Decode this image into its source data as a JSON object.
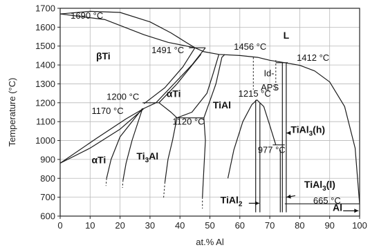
{
  "chart_data": {
    "type": "line",
    "xlabel": "at.% Al",
    "ylabel": "Temperature (°C)",
    "xlim": [
      0,
      100
    ],
    "ylim": [
      600,
      1700
    ],
    "x_ticks": [
      "0",
      "10",
      "20",
      "30",
      "40",
      "50",
      "60",
      "70",
      "80",
      "90",
      "100"
    ],
    "y_ticks": [
      "600",
      "700",
      "800",
      "900",
      "1000",
      "1100",
      "1200",
      "1300",
      "1400",
      "1500",
      "1600",
      "1700"
    ],
    "grid": true,
    "temperature_annotations": [
      {
        "text": "1690 °C",
        "x": 3.5,
        "y": 1645
      },
      {
        "text": "1491 °C",
        "x": 30.5,
        "y": 1462
      },
      {
        "text": "1456 °C",
        "x": 58,
        "y": 1480
      },
      {
        "text": "1412 °C",
        "x": 79,
        "y": 1423
      },
      {
        "text": "1200 °C",
        "x": 15.5,
        "y": 1215
      },
      {
        "text": "1170 °C",
        "x": 10.5,
        "y": 1140
      },
      {
        "text": "1215 °C",
        "x": 59.5,
        "y": 1232
      },
      {
        "text": "1120 °C",
        "x": 37.5,
        "y": 1085
      },
      {
        "text": "977 °C",
        "x": 66,
        "y": 935
      },
      {
        "text": "665 °C",
        "x": 84.5,
        "y": 665
      }
    ],
    "phase_labels": [
      {
        "text": "L",
        "x": 74.5,
        "y": 1540
      },
      {
        "text": "βTi",
        "x": 12,
        "y": 1430
      },
      {
        "text": "αTi",
        "x": 35.5,
        "y": 1230
      },
      {
        "text": "TiAl",
        "x": 51,
        "y": 1170
      },
      {
        "text": "αTi",
        "x": 10.5,
        "y": 880
      },
      {
        "text": "Ti",
        "sub": "3",
        "after": "Al",
        "x": 25.5,
        "y": 900
      },
      {
        "text": "TiAl",
        "sub": "3",
        "after": "(h)",
        "x": 77,
        "y": 1040
      },
      {
        "text": "TiAl",
        "sub": "3",
        "after": "(l)",
        "x": 81.5,
        "y": 750
      },
      {
        "text": "TiAl",
        "sub": "2",
        "after": "",
        "x": 53.5,
        "y": 668
      },
      {
        "text": "Al",
        "x": 91,
        "y": 628
      }
    ],
    "region_labels_plain": [
      {
        "text": "Id-",
        "x": 68,
        "y": 1340
      },
      {
        "text": "APS",
        "x": 67,
        "y": 1265
      }
    ],
    "lines": [
      {
        "id": "liquidus",
        "points": [
          [
            0,
            1670
          ],
          [
            10,
            1684
          ],
          [
            20,
            1678
          ],
          [
            30,
            1628
          ],
          [
            37,
            1570
          ],
          [
            42,
            1520
          ],
          [
            45,
            1491
          ],
          [
            48,
            1470
          ],
          [
            53,
            1456
          ],
          [
            60,
            1450
          ],
          [
            66,
            1440
          ],
          [
            70,
            1425
          ],
          [
            75,
            1412
          ],
          [
            80,
            1398
          ],
          [
            85,
            1368
          ],
          [
            90,
            1310
          ],
          [
            95,
            1180
          ],
          [
            98.5,
            960
          ],
          [
            100,
            662
          ]
        ]
      },
      {
        "id": "solidus-bTi",
        "points": [
          [
            0,
            1670
          ],
          [
            15,
            1640
          ],
          [
            28,
            1560
          ],
          [
            36,
            1520
          ],
          [
            45,
            1491
          ]
        ]
      },
      {
        "id": "peritectic-1491",
        "points": [
          [
            43,
            1491
          ],
          [
            48.5,
            1491
          ]
        ]
      },
      {
        "id": "b-a-upper",
        "points": [
          [
            28,
            1195
          ],
          [
            35,
            1280
          ],
          [
            41,
            1390
          ],
          [
            45,
            1491
          ]
        ]
      },
      {
        "id": "b-a-lower",
        "points": [
          [
            0,
            880
          ],
          [
            10,
            960
          ],
          [
            20,
            1060
          ],
          [
            28,
            1170
          ],
          [
            32,
            1200
          ]
        ]
      },
      {
        "id": "b-solvus-left",
        "points": [
          [
            0,
            880
          ],
          [
            12,
            1010
          ],
          [
            22,
            1115
          ],
          [
            28,
            1170
          ]
        ]
      },
      {
        "id": "eutectoid-1200",
        "points": [
          [
            27.5,
            1200
          ],
          [
            33,
            1200
          ]
        ]
      },
      {
        "id": "a-TiAl-right",
        "points": [
          [
            32,
            1200
          ],
          [
            38,
            1300
          ],
          [
            44,
            1400
          ],
          [
            48.5,
            1491
          ]
        ]
      },
      {
        "id": "a-TiAl-left",
        "points": [
          [
            33,
            1200
          ],
          [
            39,
            1300
          ],
          [
            47,
            1456
          ]
        ]
      },
      {
        "id": "TiAl-left-bound",
        "points": [
          [
            39,
            1120
          ],
          [
            44,
            1150
          ],
          [
            49,
            1250
          ],
          [
            51,
            1350
          ],
          [
            53,
            1456
          ]
        ]
      },
      {
        "id": "eutectoid-1120",
        "points": [
          [
            38.5,
            1120
          ],
          [
            48,
            1120
          ]
        ]
      },
      {
        "id": "a-Ti3Al-down",
        "points": [
          [
            33,
            1200
          ],
          [
            37,
            1150
          ],
          [
            39,
            1120
          ]
        ]
      },
      {
        "id": "Ti3Al-right-lower",
        "points": [
          [
            39,
            1120
          ],
          [
            37.5,
            1000
          ],
          [
            36,
            900
          ],
          [
            35,
            780
          ]
        ]
      },
      {
        "id": "Ti3Al-left",
        "points": [
          [
            27.5,
            1170
          ],
          [
            24,
            1000
          ],
          [
            22,
            880
          ],
          [
            21,
            790
          ]
        ]
      },
      {
        "id": "aTi-solvus",
        "points": [
          [
            27.5,
            1170
          ],
          [
            20,
            1020
          ],
          [
            17,
            900
          ],
          [
            15.5,
            800
          ]
        ]
      },
      {
        "id": "TiAl-right-lower",
        "points": [
          [
            48,
            1120
          ],
          [
            48.5,
            1000
          ],
          [
            48,
            850
          ],
          [
            47.5,
            700
          ]
        ]
      },
      {
        "id": "TiAl-right-upper",
        "points": [
          [
            48,
            1120
          ],
          [
            52,
            1300
          ],
          [
            54,
            1440
          ],
          [
            55,
            1456
          ]
        ]
      },
      {
        "id": "TiAl2-dome",
        "points": [
          [
            56,
            800
          ],
          [
            58,
            950
          ],
          [
            61,
            1100
          ],
          [
            64,
            1190
          ],
          [
            65.7,
            1215
          ],
          [
            68,
            1180
          ],
          [
            70,
            1080
          ],
          [
            72,
            977
          ]
        ]
      },
      {
        "id": "TiAl2-left",
        "points": [
          [
            65.3,
            620
          ],
          [
            65.3,
            1215
          ]
        ]
      },
      {
        "id": "TiAl2-right",
        "points": [
          [
            66.7,
            620
          ],
          [
            66.7,
            1200
          ]
        ]
      },
      {
        "id": "peritectoid-977",
        "points": [
          [
            71,
            977
          ],
          [
            75,
            977
          ]
        ]
      },
      {
        "id": "TiAl3-h-left",
        "points": [
          [
            74.2,
            620
          ],
          [
            74.2,
            1412
          ]
        ]
      },
      {
        "id": "TiAl3-h-right",
        "points": [
          [
            75.5,
            620
          ],
          [
            75.5,
            1412
          ]
        ]
      },
      {
        "id": "TiAl3-l-left",
        "points": [
          [
            73.5,
            620
          ],
          [
            73.5,
            950
          ]
        ]
      },
      {
        "id": "peritectic-1412",
        "points": [
          [
            72,
            1412
          ],
          [
            76,
            1412
          ]
        ]
      },
      {
        "id": "eutectic-665",
        "points": [
          [
            75,
            665
          ],
          [
            100,
            665
          ]
        ]
      }
    ],
    "dashed_lines": [
      {
        "id": "IdAPS-left",
        "points": [
          [
            64.5,
            1440
          ],
          [
            64.5,
            1270
          ]
        ]
      },
      {
        "id": "IdAPS-right",
        "points": [
          [
            72,
            1425
          ],
          [
            72,
            1270
          ]
        ]
      },
      {
        "id": "Ti3Al-ext",
        "points": [
          [
            35,
            780
          ],
          [
            34.5,
            690
          ]
        ]
      },
      {
        "id": "TiAl-ext",
        "points": [
          [
            47.5,
            700
          ],
          [
            47.5,
            640
          ]
        ]
      },
      {
        "id": "aTi-ext",
        "points": [
          [
            15.5,
            800
          ],
          [
            15.3,
            760
          ]
        ]
      },
      {
        "id": "Ti3Al-left-ext",
        "points": [
          [
            21,
            790
          ],
          [
            20.8,
            750
          ]
        ]
      }
    ],
    "arrows": [
      {
        "id": "arrow-TiAl3h",
        "from": [
          76.8,
          1040
        ],
        "to": [
          75.6,
          1040
        ]
      },
      {
        "id": "arrow-TiAl3l",
        "from": [
          78.5,
          708
        ],
        "to": [
          75.6,
          700
        ]
      },
      {
        "id": "arrow-TiAl2",
        "from": [
          63,
          668
        ],
        "to": [
          66.5,
          668
        ]
      },
      {
        "id": "arrow-Al",
        "from": [
          94.5,
          628
        ],
        "to": [
          99.6,
          628
        ]
      }
    ]
  }
}
